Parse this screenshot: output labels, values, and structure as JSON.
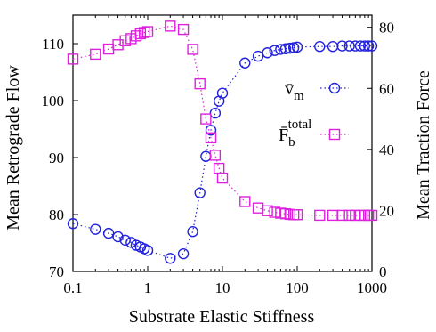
{
  "chart_data": {
    "type": "scatter",
    "xlabel": "Substrate Elastic Stiffness",
    "ylabel_left": "Mean Retrograde Flow",
    "ylabel_right": "Mean Traction Force",
    "xscale": "log",
    "xlim": [
      0.1,
      1000
    ],
    "ylim_left": [
      70,
      115
    ],
    "ylim_right": [
      0,
      84
    ],
    "x_ticks": [
      0.1,
      1,
      10,
      100,
      1000
    ],
    "x_tick_labels": [
      "0.1",
      "1",
      "10",
      "100",
      "1000"
    ],
    "y_left_ticks": [
      70,
      80,
      90,
      100,
      110
    ],
    "y_left_tick_labels": [
      "70",
      "80",
      "90",
      "100",
      "110"
    ],
    "y_right_ticks": [
      0,
      20,
      40,
      60,
      80
    ],
    "y_right_tick_labels": [
      "0",
      "20",
      "40",
      "60",
      "80"
    ],
    "grid": false,
    "legend_position": "right-middle",
    "series": [
      {
        "name_main": "v̄",
        "name_sub": "m",
        "axis": "left",
        "color": "#2222dd",
        "marker": "circle",
        "x": [
          0.1,
          0.2,
          0.3,
          0.4,
          0.5,
          0.6,
          0.7,
          0.8,
          0.9,
          1.0,
          2,
          3,
          4,
          5,
          6,
          7,
          8,
          9,
          10,
          20,
          30,
          40,
          50,
          60,
          70,
          80,
          90,
          100,
          200,
          300,
          400,
          500,
          600,
          700,
          800,
          900,
          1000
        ],
        "values": [
          78.4,
          77.4,
          76.7,
          76.1,
          75.5,
          75.1,
          74.6,
          74.3,
          74.0,
          73.7,
          72.3,
          73.1,
          77.0,
          83.8,
          90.2,
          94.8,
          97.8,
          99.9,
          101.3,
          106.6,
          107.8,
          108.4,
          108.8,
          109.0,
          109.1,
          109.2,
          109.3,
          109.4,
          109.5,
          109.5,
          109.6,
          109.6,
          109.6,
          109.6,
          109.6,
          109.6,
          109.6
        ]
      },
      {
        "name_main": "F̄",
        "name_sub": "b",
        "name_sup": "total",
        "axis": "right",
        "color": "#dd22dd",
        "marker": "square",
        "x": [
          0.1,
          0.2,
          0.3,
          0.4,
          0.5,
          0.6,
          0.7,
          0.8,
          0.9,
          1.0,
          2,
          3,
          4,
          5,
          6,
          7,
          8,
          9,
          10,
          20,
          30,
          40,
          50,
          60,
          70,
          80,
          90,
          100,
          200,
          300,
          400,
          500,
          600,
          700,
          800,
          900,
          1000
        ],
        "values": [
          69.6,
          71.2,
          72.9,
          74.3,
          75.6,
          76.3,
          77.2,
          77.9,
          78.3,
          78.6,
          80.4,
          79.3,
          72.8,
          61.5,
          50.0,
          43.8,
          38.1,
          33.8,
          30.6,
          22.9,
          20.8,
          19.9,
          19.4,
          19.1,
          18.9,
          18.7,
          18.6,
          18.6,
          18.4,
          18.4,
          18.4,
          18.4,
          18.4,
          18.4,
          18.4,
          18.4,
          18.4
        ]
      }
    ]
  }
}
